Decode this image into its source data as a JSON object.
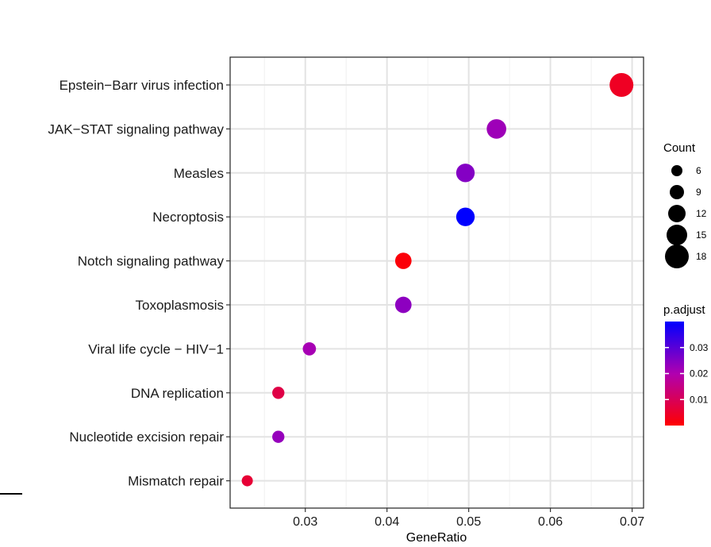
{
  "chart_data": {
    "type": "scatter",
    "xlabel": "GeneRatio",
    "ylabel": "",
    "xlim": [
      0.0208,
      0.0714
    ],
    "x_ticks": [
      0.03,
      0.04,
      0.05,
      0.06,
      0.07
    ],
    "x_tick_labels": [
      "0.03",
      "0.04",
      "0.05",
      "0.06",
      "0.07"
    ],
    "grid": true,
    "categories": [
      "Epstein−Barr virus infection",
      "JAK−STAT signaling pathway",
      "Measles",
      "Necroptosis",
      "Notch signaling pathway",
      "Toxoplasmosis",
      "Viral life cycle − HIV−1",
      "DNA replication",
      "Nucleotide excision repair",
      "Mismatch repair"
    ],
    "points": [
      {
        "term": "Epstein−Barr virus infection",
        "gene_ratio": 0.0687,
        "count": 18,
        "p_adjust": 0.004
      },
      {
        "term": "JAK−STAT signaling pathway",
        "gene_ratio": 0.0534,
        "count": 14,
        "p_adjust": 0.022
      },
      {
        "term": "Measles",
        "gene_ratio": 0.0496,
        "count": 13,
        "p_adjust": 0.025
      },
      {
        "term": "Necroptosis",
        "gene_ratio": 0.0496,
        "count": 13,
        "p_adjust": 0.04
      },
      {
        "term": "Notch signaling pathway",
        "gene_ratio": 0.042,
        "count": 11,
        "p_adjust": 0.001
      },
      {
        "term": "Toxoplasmosis",
        "gene_ratio": 0.042,
        "count": 11,
        "p_adjust": 0.024
      },
      {
        "term": "Viral life cycle − HIV−1",
        "gene_ratio": 0.0305,
        "count": 8,
        "p_adjust": 0.021
      },
      {
        "term": "DNA replication",
        "gene_ratio": 0.0267,
        "count": 7,
        "p_adjust": 0.008
      },
      {
        "term": "Nucleotide excision repair",
        "gene_ratio": 0.0267,
        "count": 7,
        "p_adjust": 0.023
      },
      {
        "term": "Mismatch repair",
        "gene_ratio": 0.0229,
        "count": 6,
        "p_adjust": 0.006
      }
    ],
    "size_legend": {
      "title": "Count",
      "values": [
        6,
        9,
        12,
        15,
        18
      ],
      "labels": [
        "6",
        "9",
        "12",
        "15",
        "18"
      ]
    },
    "color_legend": {
      "title": "p.adjust",
      "range": [
        0.0,
        0.04
      ],
      "ticks": [
        0.01,
        0.02,
        0.03
      ],
      "tick_labels": [
        "0.01",
        "0.02",
        "0.03"
      ],
      "low_color": "#ff0000",
      "high_color": "#0000ff"
    },
    "legend_position": "right"
  }
}
